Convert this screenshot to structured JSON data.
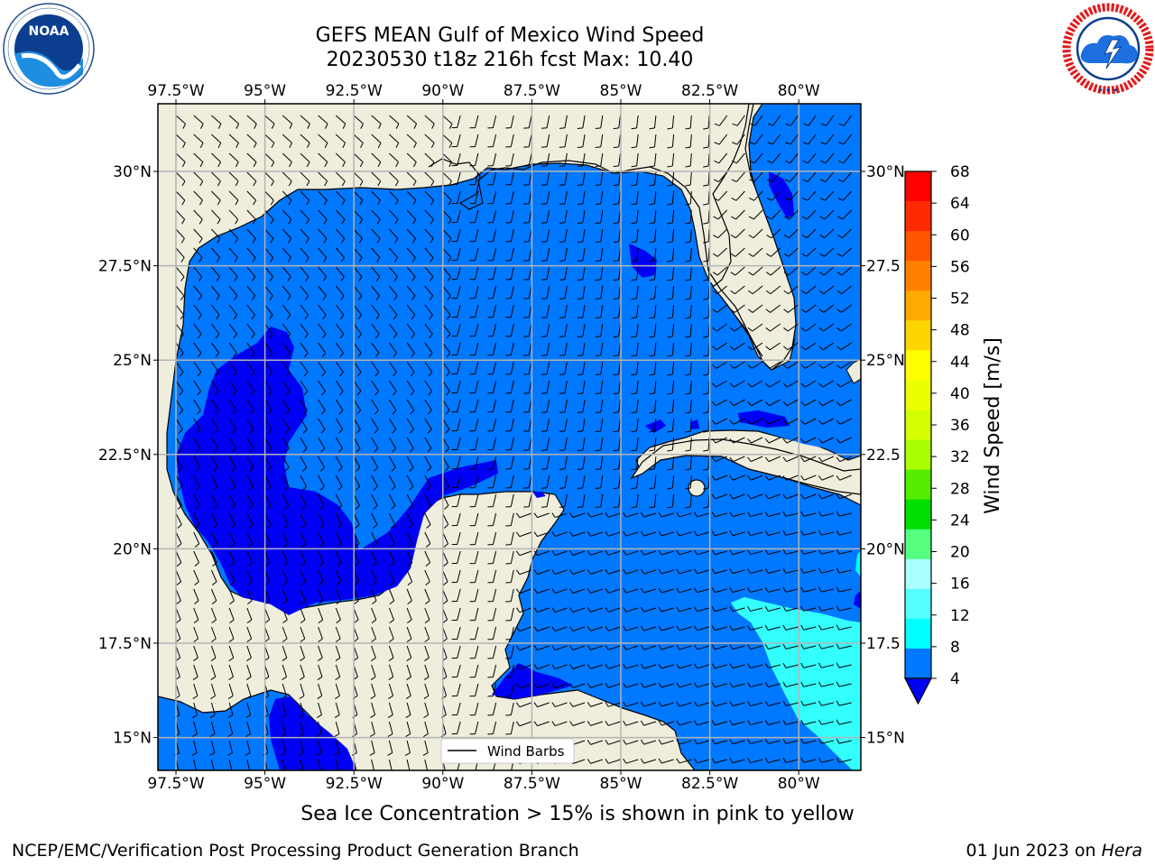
{
  "header": {
    "title_line1": "GEFS MEAN Gulf of Mexico Wind Speed",
    "title_line2": "20230530 t18z 216h fcst   Max: 10.40"
  },
  "logos": {
    "left": "noaa-logo",
    "left_text": "NOAA",
    "left_ring_text": "NATIONAL OCEANIC AND ATMOSPHERIC ADMINISTRATION · U.S. DEPARTMENT OF COMMERCE",
    "right": "nws-logo",
    "right_ring_text": "NATIONAL WEATHER SERVICE"
  },
  "map": {
    "lon_labels": [
      "97.5°W",
      "95°W",
      "92.5°W",
      "90°W",
      "87.5°W",
      "85°W",
      "82.5°W",
      "80°W"
    ],
    "lat_labels": [
      "30°N",
      "27.5°N",
      "25°N",
      "22.5°N",
      "20°N",
      "17.5°N",
      "15°N"
    ],
    "right_lat_labels": [
      "30°N",
      "27.5",
      "25°N",
      "22.5",
      "20°N",
      "17.5",
      "15°N"
    ],
    "legend_label": "Wind Barbs",
    "colors": {
      "land": "#efeddc",
      "ocean_4_8": "#0078ff",
      "ocean_0_4": "#0000f5",
      "ocean_12_16": "#33ffff",
      "grid": "#b4b4b4"
    }
  },
  "colorbar": {
    "label": "Wind Speed [m/s]",
    "ticks": [
      "68",
      "64",
      "60",
      "56",
      "52",
      "48",
      "44",
      "40",
      "36",
      "32",
      "28",
      "24",
      "20",
      "16",
      "12",
      "8",
      "4"
    ],
    "colors_top_to_bottom": [
      "#ff0000",
      "#ff2a00",
      "#ff5500",
      "#ff8000",
      "#ffaa00",
      "#ffd500",
      "#ffff00",
      "#ecff00",
      "#d5ff00",
      "#aaff00",
      "#55ee00",
      "#00e000",
      "#55ff80",
      "#aaffff",
      "#55ffff",
      "#00ffff",
      "#0078ff"
    ],
    "under_color": "#0000f5"
  },
  "note": "Sea Ice Concentration > 15% is shown in pink to yellow",
  "footer": {
    "left": "NCEP/EMC/Verification Post Processing Product Generation Branch",
    "right_date": "01 Jun 2023 on ",
    "right_host": "Hera"
  }
}
